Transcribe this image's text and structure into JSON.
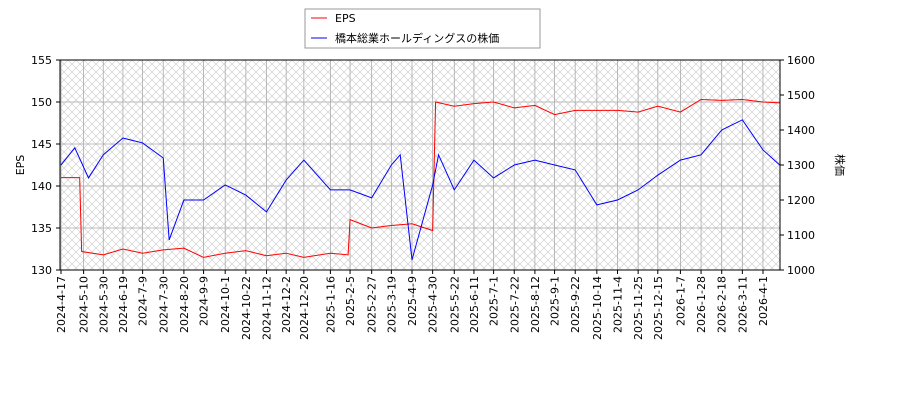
{
  "chart_data": {
    "type": "line",
    "xlabel": "",
    "ylabel": "EPS",
    "y2label": "株価",
    "ylim": [
      130,
      155
    ],
    "y2lim": [
      1000,
      1600
    ],
    "yticks": [
      130,
      135,
      140,
      145,
      150,
      155
    ],
    "y2ticks": [
      1000,
      1100,
      1200,
      1300,
      1400,
      1500,
      1600
    ],
    "grid": true,
    "legend_position": "top-center",
    "xtick_labels": [
      "2024-4-17",
      "2024-5-10",
      "2024-5-30",
      "2024-6-19",
      "2024-7-9",
      "2024-7-30",
      "2024-8-20",
      "2024-9-9",
      "2024-10-1",
      "2024-10-22",
      "2024-11-12",
      "2024-12-2",
      "2024-12-20",
      "2025-1-16",
      "2025-2-5",
      "2025-2-27",
      "2025-3-19",
      "2025-4-9",
      "2025-4-30",
      "2025-5-22",
      "2025-6-11",
      "2025-7-1",
      "2025-7-22",
      "2025-8-12",
      "2025-9-1",
      "2025-9-22",
      "2025-10-14",
      "2025-11-4",
      "2025-11-25",
      "2025-12-15",
      "2026-1-7",
      "2026-1-28",
      "2026-2-18",
      "2026-3-11",
      "2026-4-1"
    ],
    "series": [
      {
        "name": "EPS",
        "axis": "left",
        "color": "#ff0000",
        "points": [
          [
            "2024-4-17",
            141
          ],
          [
            "2024-5-6",
            141
          ],
          [
            "2024-5-8",
            132.2
          ],
          [
            "2024-5-30",
            131.8
          ],
          [
            "2024-6-19",
            132.5
          ],
          [
            "2024-7-9",
            132
          ],
          [
            "2024-7-30",
            132.4
          ],
          [
            "2024-8-20",
            132.6
          ],
          [
            "2024-9-9",
            131.5
          ],
          [
            "2024-10-1",
            132
          ],
          [
            "2024-10-22",
            132.3
          ],
          [
            "2024-11-12",
            131.7
          ],
          [
            "2024-12-2",
            132
          ],
          [
            "2024-12-20",
            131.5
          ],
          [
            "2025-1-16",
            132
          ],
          [
            "2025-2-3",
            131.8
          ],
          [
            "2025-2-5",
            136
          ],
          [
            "2025-2-27",
            135
          ],
          [
            "2025-3-19",
            135.3
          ],
          [
            "2025-4-9",
            135.5
          ],
          [
            "2025-4-30",
            134.7
          ],
          [
            "2025-5-3",
            150
          ],
          [
            "2025-5-22",
            149.5
          ],
          [
            "2025-6-11",
            149.8
          ],
          [
            "2025-7-1",
            150
          ],
          [
            "2025-7-22",
            149.3
          ],
          [
            "2025-8-12",
            149.6
          ],
          [
            "2025-9-1",
            148.5
          ],
          [
            "2025-9-22",
            149
          ],
          [
            "2025-10-14",
            149
          ],
          [
            "2025-11-4",
            149
          ],
          [
            "2025-11-25",
            148.8
          ],
          [
            "2025-12-15",
            149.5
          ],
          [
            "2026-1-7",
            148.8
          ],
          [
            "2026-1-28",
            150.3
          ],
          [
            "2026-2-18",
            150.2
          ],
          [
            "2026-3-11",
            150.3
          ],
          [
            "2026-4-1",
            150
          ],
          [
            "2026-4-18",
            149.9
          ]
        ]
      },
      {
        "name": "橋本総業ホールディングスの株価",
        "axis": "right",
        "color": "#0000ff",
        "points": [
          [
            "2024-4-17",
            1300
          ],
          [
            "2024-5-1",
            1349
          ],
          [
            "2024-5-15",
            1263
          ],
          [
            "2024-5-30",
            1329
          ],
          [
            "2024-6-19",
            1377
          ],
          [
            "2024-7-9",
            1363
          ],
          [
            "2024-7-30",
            1320
          ],
          [
            "2024-8-5",
            1086
          ],
          [
            "2024-8-20",
            1200
          ],
          [
            "2024-9-9",
            1200
          ],
          [
            "2024-10-1",
            1243
          ],
          [
            "2024-10-22",
            1214
          ],
          [
            "2024-11-12",
            1166
          ],
          [
            "2024-12-2",
            1257
          ],
          [
            "2024-12-20",
            1314
          ],
          [
            "2025-1-16",
            1229
          ],
          [
            "2025-2-5",
            1229
          ],
          [
            "2025-2-27",
            1206
          ],
          [
            "2025-3-19",
            1300
          ],
          [
            "2025-3-28",
            1329
          ],
          [
            "2025-4-9",
            1029
          ],
          [
            "2025-4-30",
            1243
          ],
          [
            "2025-5-6",
            1329
          ],
          [
            "2025-5-22",
            1229
          ],
          [
            "2025-6-11",
            1314
          ],
          [
            "2025-7-1",
            1263
          ],
          [
            "2025-7-22",
            1300
          ],
          [
            "2025-8-12",
            1314
          ],
          [
            "2025-9-1",
            1300
          ],
          [
            "2025-9-22",
            1286
          ],
          [
            "2025-10-14",
            1186
          ],
          [
            "2025-11-4",
            1200
          ],
          [
            "2025-11-25",
            1229
          ],
          [
            "2025-12-15",
            1271
          ],
          [
            "2026-1-7",
            1314
          ],
          [
            "2026-1-28",
            1329
          ],
          [
            "2026-2-18",
            1400
          ],
          [
            "2026-3-11",
            1429
          ],
          [
            "2026-4-1",
            1343
          ],
          [
            "2026-4-18",
            1300
          ]
        ]
      }
    ]
  }
}
